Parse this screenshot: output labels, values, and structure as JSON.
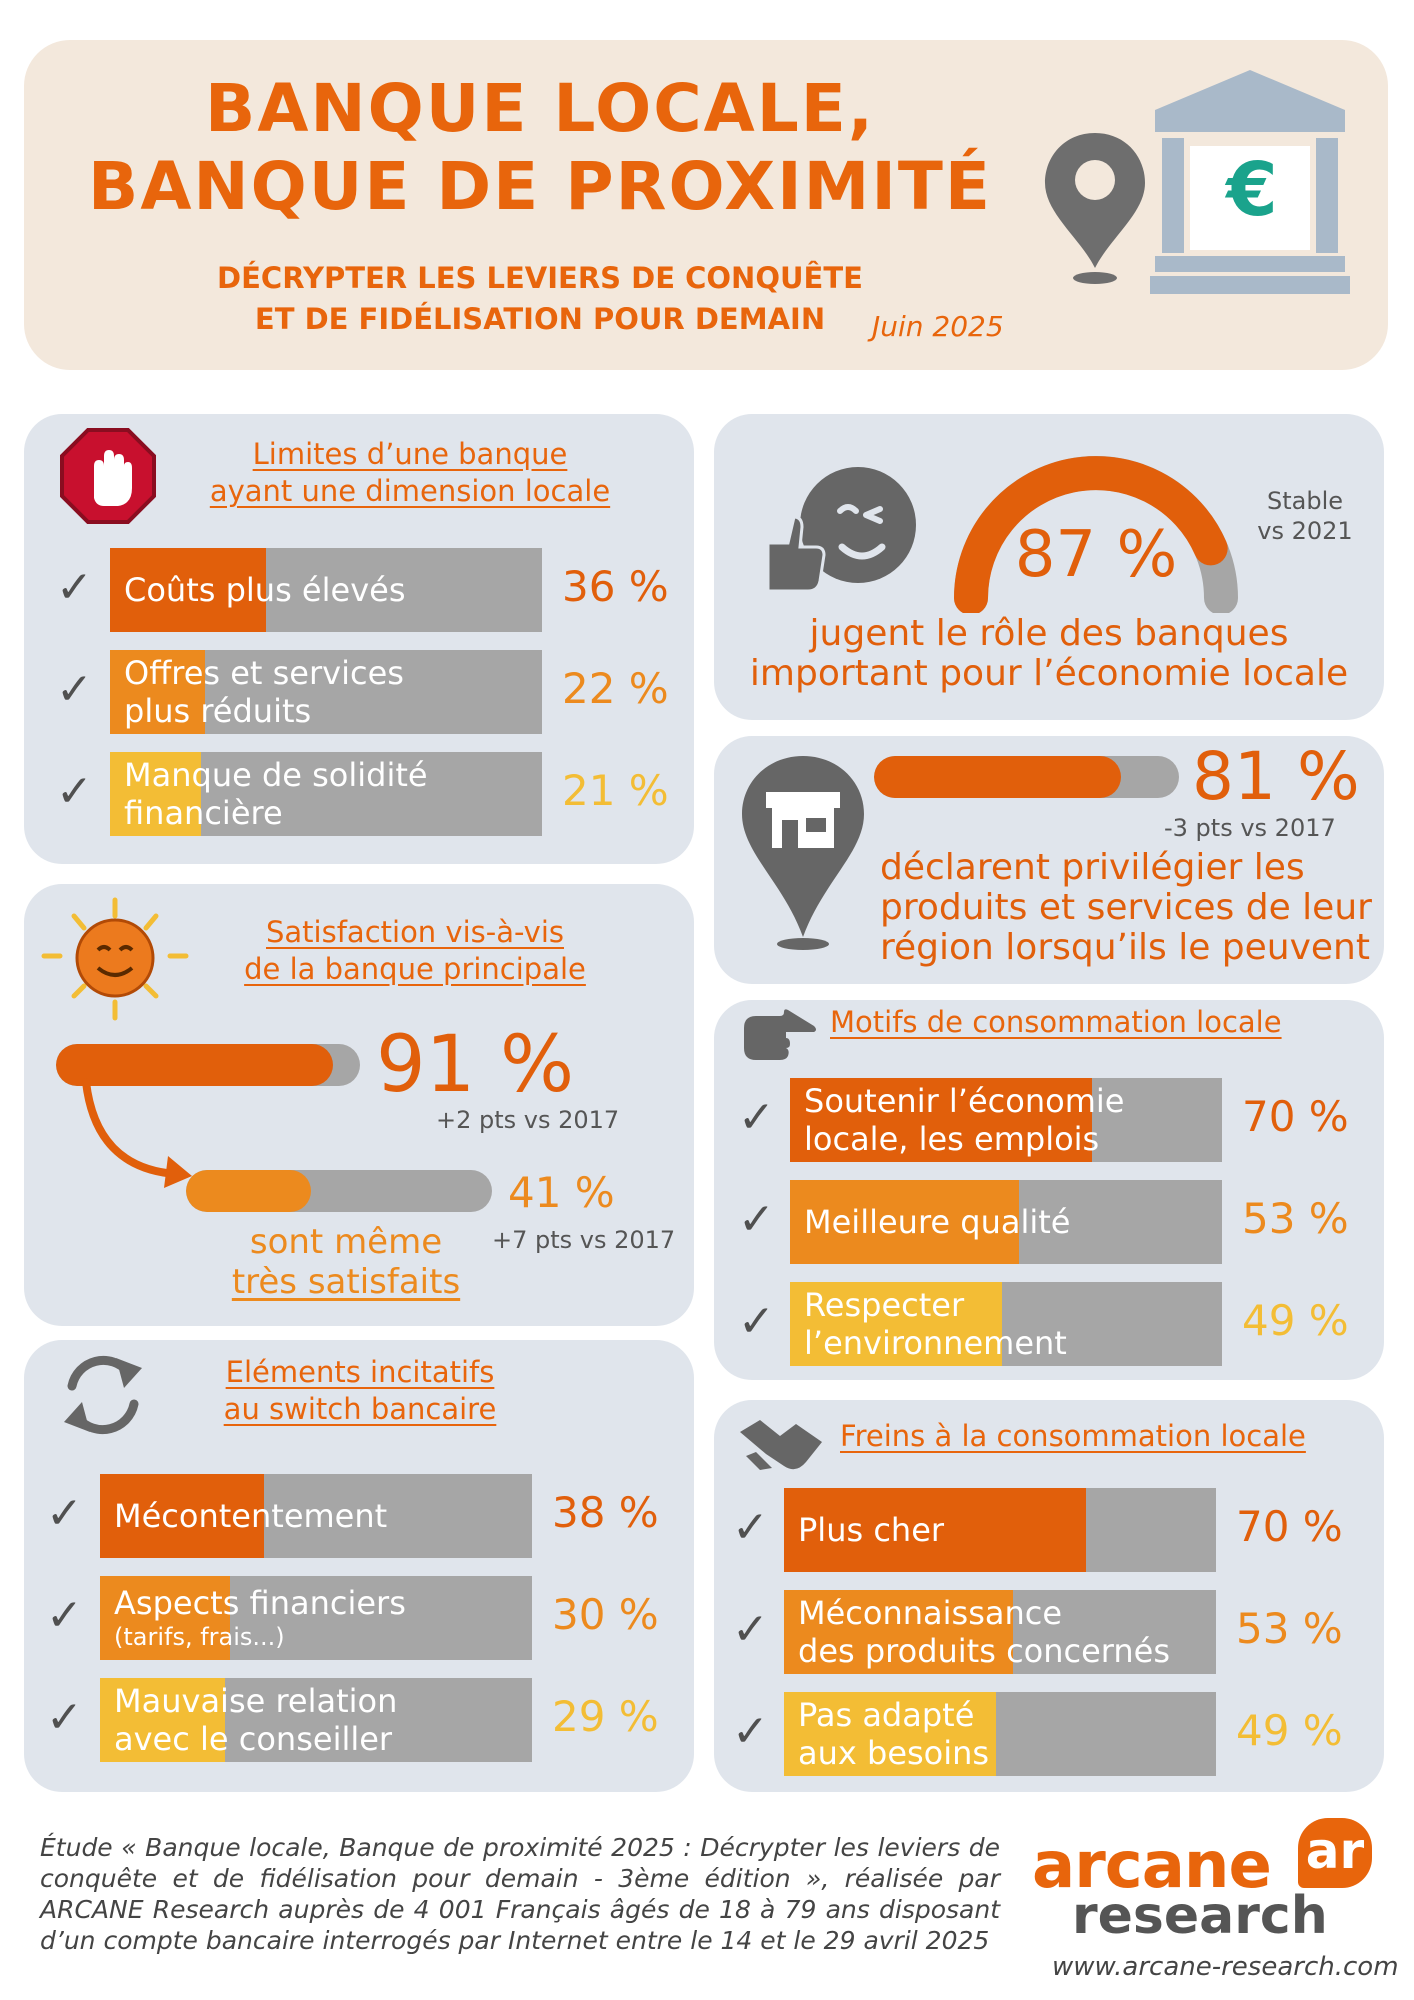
{
  "header": {
    "title_line1": "BANQUE LOCALE,",
    "title_line2": "BANQUE DE PROXIMITÉ",
    "subtitle_line1": "DÉCRYPTER LES LEVIERS DE CONQUÊTE",
    "subtitle_line2": "ET DE FIDÉLISATION POUR DEMAIN",
    "date": "Juin 2025",
    "euro_symbol": "€",
    "icons": [
      "map-pin-icon",
      "bank-icon"
    ]
  },
  "limites": {
    "title_line1": "Limites d’une banque",
    "title_line2": "ayant une dimension locale",
    "icon": "stop-hand-icon",
    "items": [
      {
        "label_line1": "Coûts plus élevés",
        "label_line2": "",
        "pct_text": "36 %",
        "value": 36
      },
      {
        "label_line1": "Offres et services",
        "label_line2": "plus réduits",
        "pct_text": "22 %",
        "value": 22
      },
      {
        "label_line1": "Manque de solidité",
        "label_line2": "financière",
        "pct_text": "21 %",
        "value": 21
      }
    ]
  },
  "role_banques": {
    "pct_text": "87 %",
    "value": 87,
    "stable_line1": "Stable",
    "stable_line2": "vs 2021",
    "desc_line1": "jugent le rôle des banques",
    "desc_line2": "important pour l’économie locale",
    "icon": "thumbs-up-wink-icon"
  },
  "region": {
    "pct_text": "81 %",
    "value": 81,
    "delta": "-3 pts vs 2017",
    "desc_line1": "déclarent privilégier les",
    "desc_line2": "produits et services de leur",
    "desc_line3": "région lorsqu’ils le peuvent",
    "icon": "shop-pin-icon"
  },
  "satisfaction": {
    "title_line1": "Satisfaction vis-à-vis",
    "title_line2": "de la banque principale",
    "icon": "sun-smile-icon",
    "main_pct_text": "91 %",
    "main_value": 91,
    "main_delta": "+2 pts vs 2017",
    "sub_pct_text": "41 %",
    "sub_value": 41,
    "sub_delta": "+7 pts vs 2017",
    "sub_desc_line1": "sont même",
    "sub_desc_line2": "très satisfaits"
  },
  "motifs": {
    "title": "Motifs de consommation locale",
    "icon": "pointing-hand-icon",
    "items": [
      {
        "label_line1": "Soutenir l’économie",
        "label_line2": "locale, les emplois",
        "pct_text": "70 %",
        "value": 70
      },
      {
        "label_line1": "Meilleure qualité",
        "label_line2": "",
        "pct_text": "53 %",
        "value": 53
      },
      {
        "label_line1": "Respecter",
        "label_line2": "l’environnement",
        "pct_text": "49 %",
        "value": 49
      }
    ]
  },
  "switch": {
    "title_line1": "Eléments incitatifs",
    "title_line2": "au switch bancaire",
    "icon": "refresh-arrows-icon",
    "items": [
      {
        "label_line1": "Mécontentement",
        "label_line2": "",
        "pct_text": "38 %",
        "value": 38
      },
      {
        "label_line1": "Aspects financiers",
        "label_line2": "(tarifs, frais...)",
        "pct_text": "30 %",
        "value": 30
      },
      {
        "label_line1": "Mauvaise relation",
        "label_line2": "avec le conseiller",
        "pct_text": "29 %",
        "value": 29
      }
    ]
  },
  "freins": {
    "title": "Freins à la consommation locale",
    "icon": "handshake-icon",
    "items": [
      {
        "label_line1": "Plus cher",
        "label_line2": "",
        "pct_text": "70 %",
        "value": 70
      },
      {
        "label_line1": "Méconnaissance",
        "label_line2": "des produits concernés",
        "pct_text": "53 %",
        "value": 53
      },
      {
        "label_line1": "Pas adapté",
        "label_line2": "aux besoins",
        "pct_text": "49 %",
        "value": 49
      }
    ]
  },
  "check_mark": "✓",
  "footer": {
    "study_text": "Étude « Banque locale, Banque de proximité 2025 : Décrypter les leviers de conquête et de fidélisation pour demain - 3ème édition », réalisée par ARCANE Research auprès de 4 001 Français âgés de 18 à 79 ans disposant d’un compte bancaire interrogés par Internet entre le 14 et le 29 avril 2025",
    "logo_word1": "arcane",
    "logo_word2": "research",
    "logo_mark": "ar",
    "website": "www.arcane-research.com"
  },
  "colors": {
    "dark_orange": "#e15f0b",
    "mid_orange": "#ec8a1e",
    "light_orange": "#f3bd35",
    "bar_grey": "#a6a6a6",
    "panel_bg": "#e0e5ec",
    "header_bg": "#f3e8dc"
  }
}
